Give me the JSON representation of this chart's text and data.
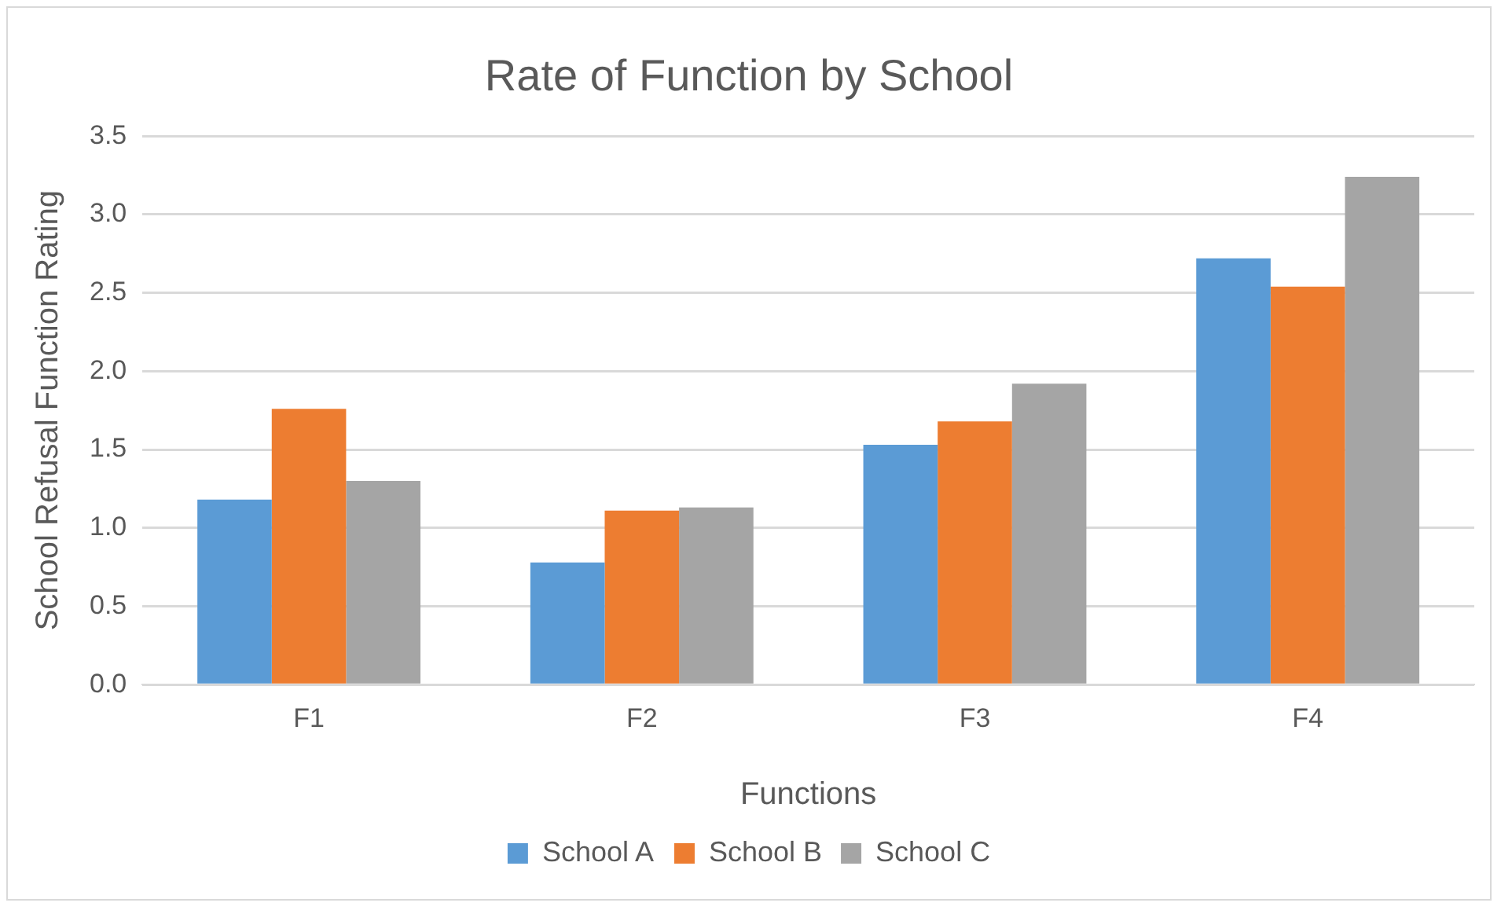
{
  "chart_data": {
    "type": "bar",
    "title": "Rate of Function by School",
    "xlabel": "Functions",
    "ylabel": "School Refusal Function Rating",
    "categories": [
      "F1",
      "F2",
      "F3",
      "F4"
    ],
    "series": [
      {
        "name": "School A",
        "color": "#5b9bd5",
        "values": [
          1.18,
          0.78,
          1.53,
          2.72
        ]
      },
      {
        "name": "School B",
        "color": "#ed7d31",
        "values": [
          1.76,
          1.11,
          1.68,
          2.54
        ]
      },
      {
        "name": "School C",
        "color": "#a5a5a5",
        "values": [
          1.3,
          1.13,
          1.92,
          3.24
        ]
      }
    ],
    "ylim": [
      0,
      3.5
    ],
    "yticks": [
      {
        "value": 0,
        "label": "0.0"
      },
      {
        "value": 0.5,
        "label": "0.5"
      },
      {
        "value": 1,
        "label": "1.0"
      },
      {
        "value": 1.5,
        "label": "1.5"
      },
      {
        "value": 2,
        "label": "2.0"
      },
      {
        "value": 2.5,
        "label": "2.5"
      },
      {
        "value": 3,
        "label": "3.0"
      },
      {
        "value": 3.5,
        "label": "3.5"
      }
    ],
    "grid": "y",
    "legend": "bottom"
  }
}
